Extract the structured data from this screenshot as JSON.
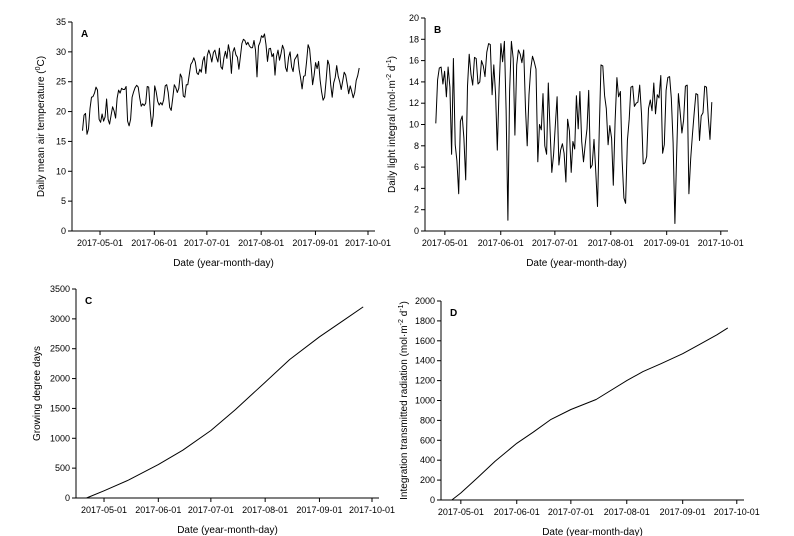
{
  "chart_data": [
    {
      "type": "line",
      "panel_label": "A",
      "xlabel": "Date (year-month-day)",
      "ylabel_main": "Daily mean air temperature (",
      "ylabel_sup": "0",
      "ylabel_tail": "C)",
      "x_start": "2017-04-21",
      "x_end": "2017-09-26",
      "xlim": [
        "2017-04-15",
        "2017-10-05"
      ],
      "ylim": [
        0,
        35
      ],
      "x_ticks": [
        "2017-05-01",
        "2017-06-01",
        "2017-07-01",
        "2017-08-01",
        "2017-09-01",
        "2017-10-01"
      ],
      "y_ticks": [
        "0",
        "5",
        "10",
        "15",
        "20",
        "25",
        "30",
        "35"
      ],
      "series": [
        {
          "values": [
            16.8,
            19.4,
            19.7,
            16.2,
            17.1,
            20.5,
            22.4,
            22.5,
            23.1,
            24.1,
            23.6,
            18.7,
            18.2,
            19.6,
            18.4,
            19.1,
            22.1,
            18.7,
            17.9,
            19.4,
            20.8,
            20.1,
            18.9,
            22.2,
            23.6,
            23.1,
            23.9,
            23.7,
            23.7,
            24.2,
            18.4,
            17.6,
            18.7,
            22.4,
            23.3,
            24.0,
            24.4,
            24.1,
            22.3,
            20.9,
            21.3,
            21.0,
            21.4,
            24.2,
            24.1,
            20.3,
            17.5,
            19.3,
            24.3,
            23.3,
            21.7,
            21.1,
            21.5,
            21.1,
            22.0,
            24.3,
            24.5,
            23.2,
            20.7,
            20.2,
            22.2,
            24.5,
            24.0,
            23.2,
            23.9,
            26.3,
            25.7,
            22.6,
            22.4,
            24.5,
            24.5,
            26.2,
            27.9,
            28.3,
            29.0,
            28.3,
            26.5,
            26.2,
            27.1,
            26.6,
            28.5,
            29.2,
            26.4,
            29.4,
            30.3,
            29.5,
            28.3,
            29.9,
            30.3,
            29.1,
            28.3,
            30.6,
            27.5,
            27.1,
            29.0,
            30.1,
            28.9,
            31.2,
            29.9,
            26.4,
            30.0,
            30.7,
            29.5,
            29.1,
            27.1,
            29.2,
            31.4,
            32.1,
            31.9,
            31.2,
            31.6,
            31.0,
            30.7,
            30.7,
            31.9,
            30.3,
            25.8,
            31.0,
            31.6,
            32.7,
            32.4,
            33.0,
            31.2,
            28.4,
            30.5,
            30.6,
            29.2,
            29.7,
            26.1,
            29.2,
            30.3,
            28.6,
            29.7,
            31.1,
            30.4,
            27.4,
            26.7,
            29.1,
            30.0,
            27.5,
            26.7,
            28.7,
            29.1,
            29.6,
            27.1,
            25.6,
            23.8,
            25.9,
            26.0,
            28.4,
            31.2,
            30.5,
            27.7,
            24.5,
            26.1,
            28.2,
            27.2,
            28.4,
            25.3,
            23.3,
            21.9,
            22.4,
            25.2,
            28.6,
            27.8,
            24.5,
            22.4,
            24.8,
            25.7,
            27.7,
            25.9,
            25.0,
            23.7,
            25.1,
            26.6,
            26.1,
            24.6,
            23.0,
            24.3,
            23.4,
            22.3,
            23.2,
            25.2,
            26.0,
            27.3
          ]
        }
      ]
    },
    {
      "type": "line",
      "panel_label": "B",
      "xlabel": "Date (year-month-day)",
      "ylabel_main": "Daily light integral (mol·m",
      "ylabel_sup1": "-2",
      "ylabel_mid": " d",
      "ylabel_sup2": "-1",
      "ylabel_tail": ")",
      "x_start": "2017-04-26",
      "x_end": "2017-09-26",
      "xlim": [
        "2017-04-20",
        "2017-10-05"
      ],
      "ylim": [
        0,
        20
      ],
      "x_ticks": [
        "2017-05-01",
        "2017-06-01",
        "2017-07-01",
        "2017-08-01",
        "2017-09-01",
        "2017-10-01"
      ],
      "y_ticks": [
        "0",
        "2",
        "4",
        "6",
        "8",
        "10",
        "12",
        "14",
        "16",
        "18",
        "20"
      ],
      "series": [
        {
          "values": [
            10.1,
            14.2,
            15.3,
            15.4,
            13.8,
            15.0,
            12.6,
            15.4,
            13.5,
            7.2,
            16.2,
            8.1,
            6.6,
            3.5,
            10.3,
            10.8,
            8.7,
            4.8,
            13.6,
            16.6,
            14.7,
            13.7,
            16.3,
            16.2,
            13.8,
            14.0,
            16.0,
            15.5,
            14.5,
            16.8,
            17.6,
            17.5,
            12.8,
            15.6,
            12.8,
            7.6,
            13.4,
            17.6,
            15.9,
            17.8,
            11.4,
            1.0,
            13.1,
            17.8,
            16.2,
            9.0,
            15.6,
            17.0,
            16.6,
            15.8,
            17.0,
            11.5,
            8.0,
            12.8,
            15.2,
            16.4,
            15.9,
            15.2,
            6.5,
            10.0,
            9.5,
            12.9,
            8.0,
            7.2,
            13.9,
            9.4,
            5.5,
            7.2,
            9.9,
            12.6,
            6.2,
            7.6,
            8.2,
            7.3,
            4.6,
            10.5,
            9.4,
            5.5,
            8.4,
            7.7,
            12.7,
            9.6,
            13.1,
            8.4,
            6.5,
            8.1,
            9.6,
            13.2,
            5.9,
            6.2,
            8.6,
            5.5,
            2.3,
            9.6,
            15.6,
            15.5,
            12.7,
            11.5,
            8.1,
            9.9,
            8.7,
            4.3,
            10.3,
            14.4,
            12.6,
            13.1,
            6.7,
            3.1,
            2.6,
            8.5,
            10.5,
            13.5,
            13.6,
            11.7,
            12.0,
            12.1,
            13.7,
            11.0,
            6.3,
            6.4,
            7.0,
            11.5,
            12.3,
            11.3,
            13.9,
            11.0,
            12.8,
            12.5,
            14.6,
            7.3,
            8.1,
            13.2,
            14.4,
            14.5,
            12.5,
            8.3,
            0.7,
            7.0,
            12.9,
            11.2,
            9.2,
            10.4,
            13.6,
            13.7,
            3.5,
            6.8,
            9.0,
            11.1,
            12.9,
            12.8,
            8.5,
            10.8,
            11.1,
            13.6,
            13.5,
            10.6,
            8.6,
            12.1
          ]
        }
      ]
    },
    {
      "type": "line",
      "panel_label": "C",
      "xlabel": "Date (year-month-day)",
      "ylabel": "Growing degree days",
      "xlim": [
        "2017-04-15",
        "2017-10-05"
      ],
      "ylim": [
        0,
        3500
      ],
      "x_ticks": [
        "2017-05-01",
        "2017-06-01",
        "2017-07-01",
        "2017-08-01",
        "2017-09-01",
        "2017-10-01"
      ],
      "y_ticks": [
        "0",
        "500",
        "1000",
        "1500",
        "2000",
        "2500",
        "3000",
        "3500"
      ],
      "series": [
        {
          "x": [
            "2017-04-21",
            "2017-05-01",
            "2017-05-15",
            "2017-06-01",
            "2017-06-15",
            "2017-07-01",
            "2017-07-15",
            "2017-08-01",
            "2017-08-15",
            "2017-09-01",
            "2017-09-15",
            "2017-09-26"
          ],
          "values": [
            0,
            120,
            300,
            560,
            800,
            1130,
            1480,
            1940,
            2320,
            2700,
            2980,
            3200
          ]
        }
      ]
    },
    {
      "type": "line",
      "panel_label": "D",
      "xlabel": "Date (year-month-day)",
      "ylabel_main": "Integration transmitted radiation (mol·m",
      "ylabel_sup1": "-2",
      "ylabel_mid": " d",
      "ylabel_sup2": "-1",
      "ylabel_tail": ")",
      "xlim": [
        "2017-04-20",
        "2017-10-05"
      ],
      "ylim": [
        0,
        2000
      ],
      "x_ticks": [
        "2017-05-01",
        "2017-06-01",
        "2017-07-01",
        "2017-08-01",
        "2017-09-01",
        "2017-10-01"
      ],
      "y_ticks": [
        "0",
        "200",
        "400",
        "600",
        "800",
        "1000",
        "1200",
        "1400",
        "1600",
        "1800",
        "2000"
      ],
      "series": [
        {
          "x": [
            "2017-04-26",
            "2017-05-01",
            "2017-05-10",
            "2017-05-20",
            "2017-06-01",
            "2017-06-10",
            "2017-06-20",
            "2017-07-01",
            "2017-07-15",
            "2017-08-01",
            "2017-08-10",
            "2017-08-20",
            "2017-09-01",
            "2017-09-10",
            "2017-09-20",
            "2017-09-26"
          ],
          "values": [
            0,
            70,
            220,
            390,
            570,
            680,
            810,
            910,
            1010,
            1200,
            1290,
            1370,
            1470,
            1560,
            1660,
            1730
          ]
        }
      ]
    }
  ]
}
